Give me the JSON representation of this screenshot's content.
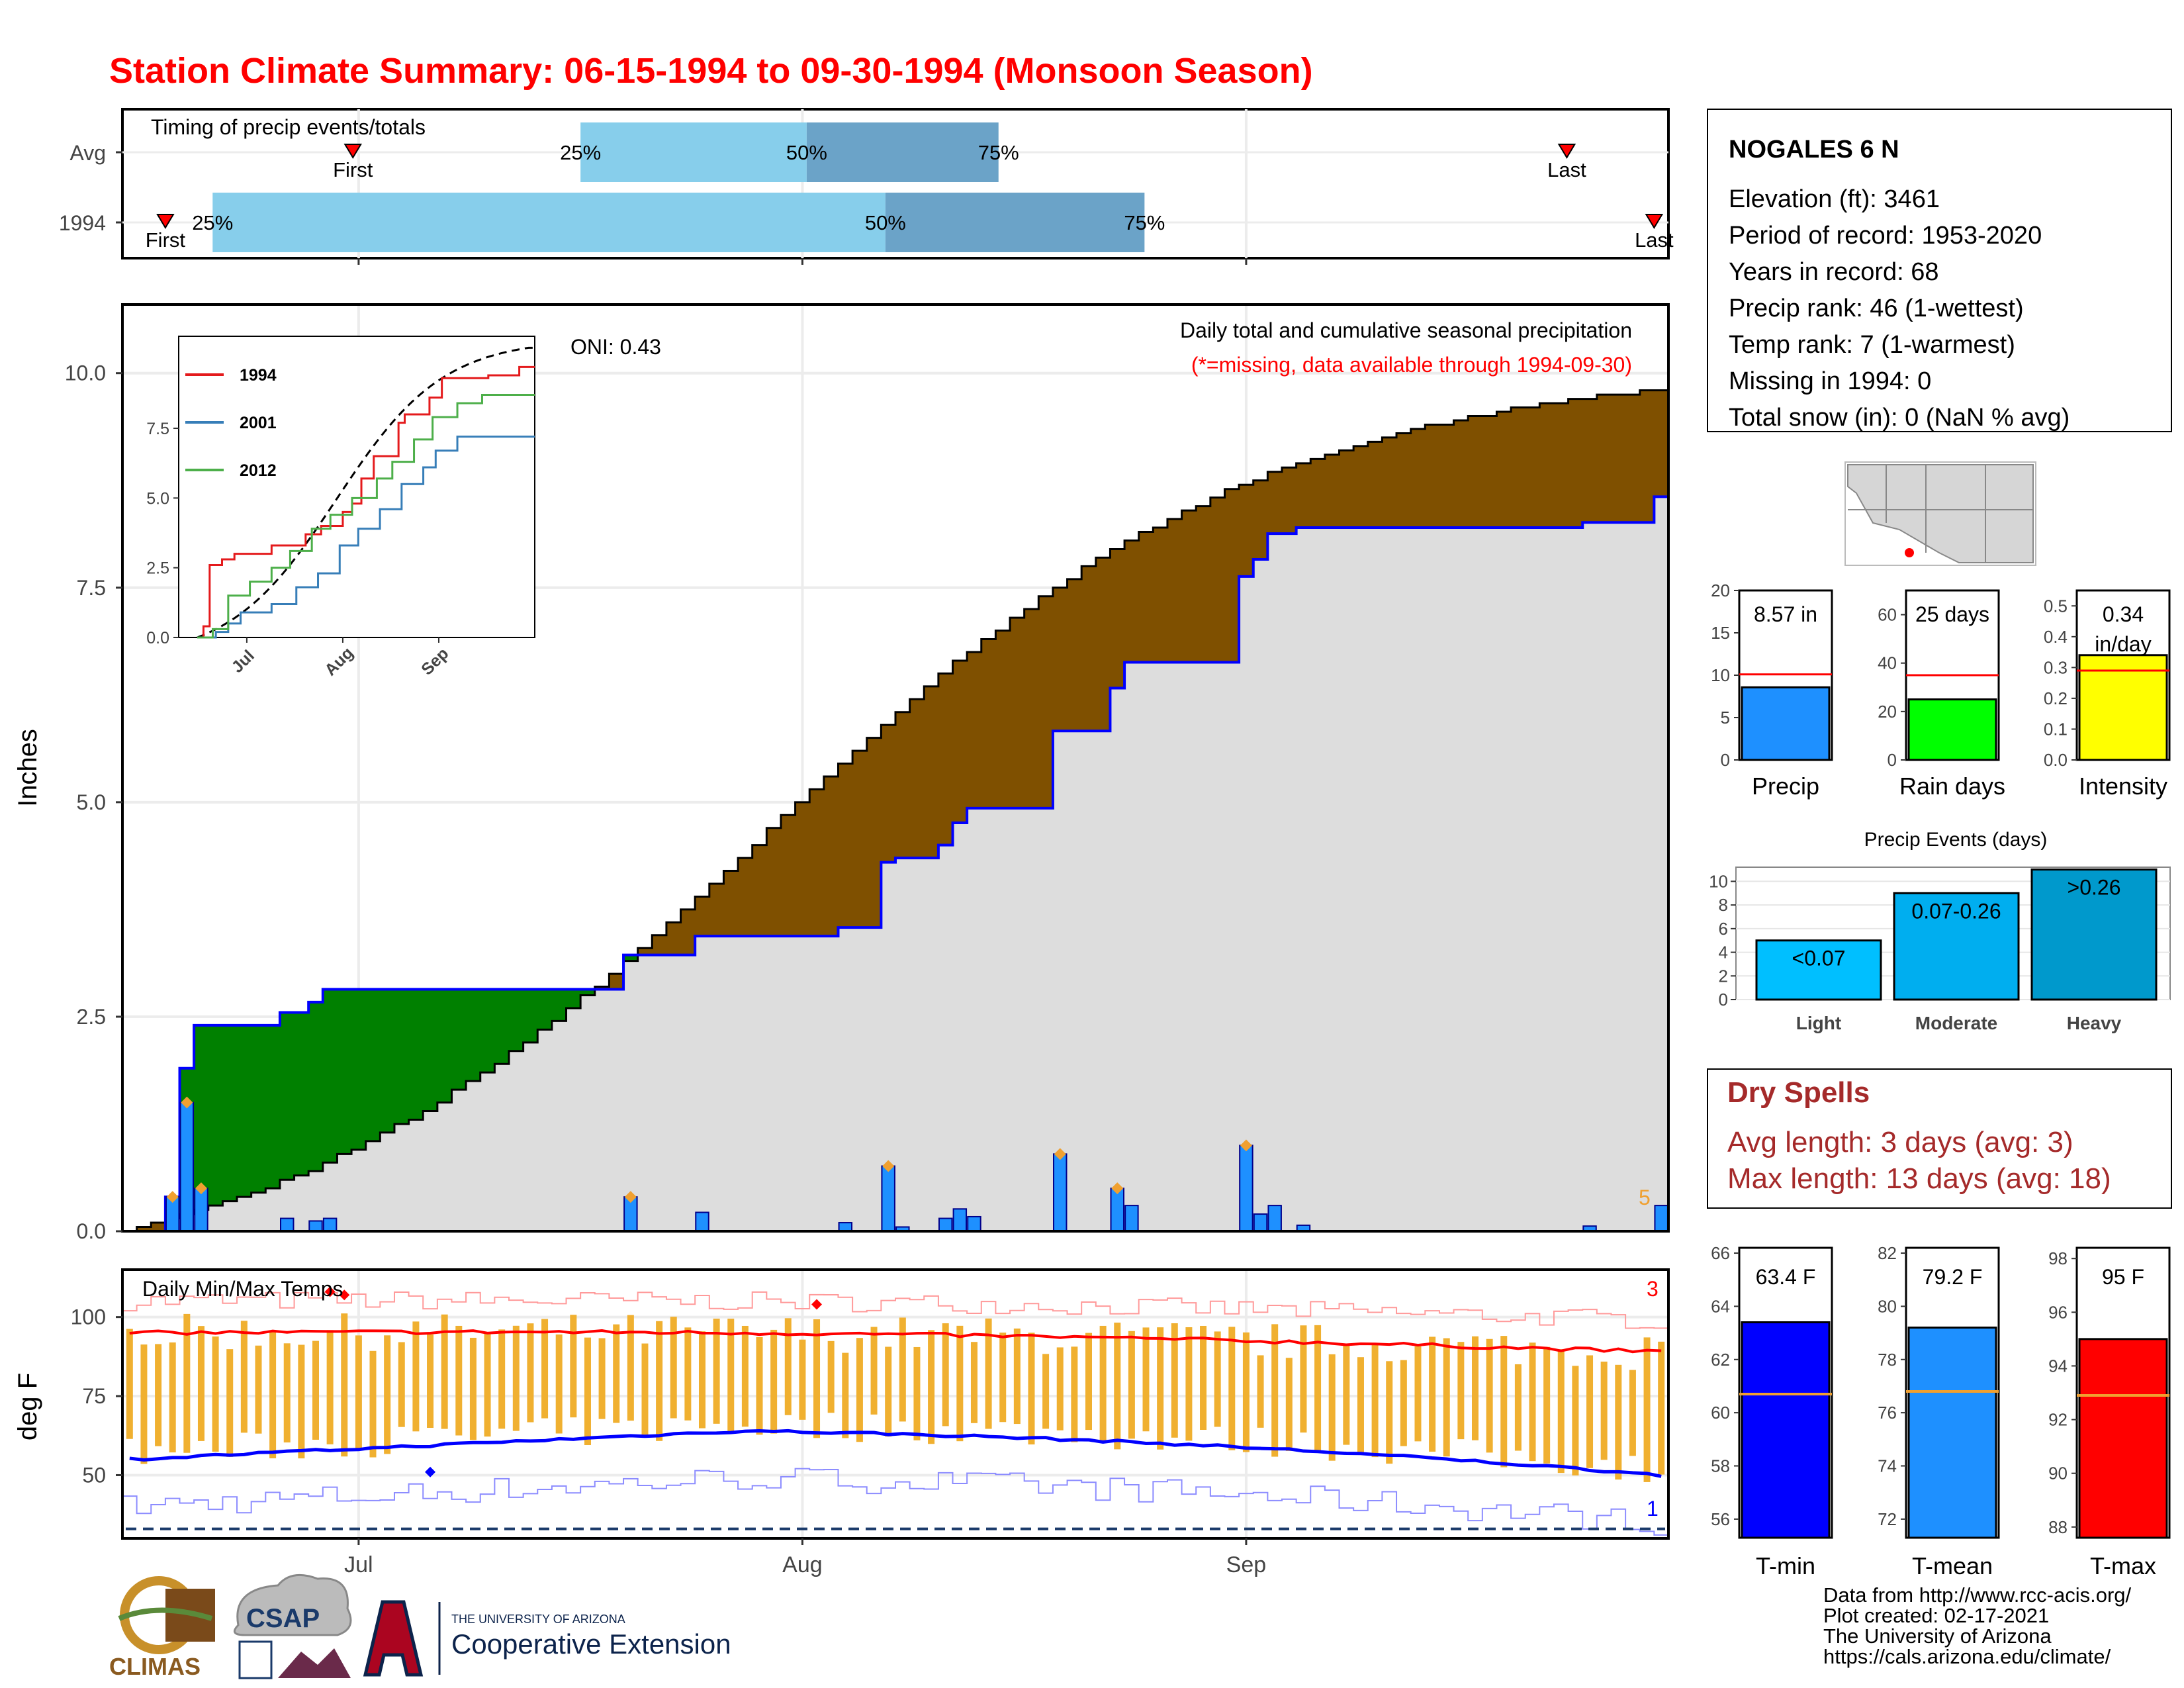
{
  "title": "Station Climate Summary: 06-15-1994 to 09-30-1994 (Monsoon Season)",
  "colors": {
    "title": "#ff0000",
    "dark_red": "#a52a2a",
    "green_fill": "#008000",
    "brown_fill": "#7f5000",
    "avg_fill": "#dddddd",
    "bar_blue": "#1e90ff",
    "blue_line": "#0000ff",
    "tmax_fill": "#ff0000",
    "tmin_fill": "#0000ff",
    "tmean_fill": "#1e90ff",
    "rain_fill": "#00ff00",
    "intensity_fill": "#ffff00",
    "range_bar": "#f0b030",
    "light_blue": "#87ceeb",
    "steel_blue": "#6ba3c8",
    "events_light": "#00bfff",
    "events_moderate": "#00aeef",
    "events_heavy": "#0099cc"
  },
  "timing_panel": {
    "title": "Timing of precip events/totals",
    "rows": [
      {
        "label": "Avg",
        "first_doy": 181.6,
        "q25": 197.5,
        "q50": 213.3,
        "q75": 226.7,
        "last_doy": 266.4,
        "q25_label": "25%",
        "q50_label": "50%",
        "q75_label": "75%",
        "first_label": "First",
        "last_label": "Last"
      },
      {
        "label": "1994",
        "first_doy": 168.5,
        "q25": 171.8,
        "q50": 218.8,
        "q75": 236.9,
        "last_doy": 272.5,
        "q25_label": "25%",
        "q50_label": "50%",
        "q75_label": "75%",
        "first_label": "First",
        "last_label": "Last"
      }
    ]
  },
  "main_panel": {
    "ylabel": "Inches",
    "title": "Daily total and cumulative seasonal precipitation",
    "subtitle": "(*=missing, data available through 1994-09-30)",
    "oni_label": "ONI: 0.43",
    "count_label": "5"
  },
  "temp_panel": {
    "title": "Daily Min/Max Temps",
    "ylabel": "deg F",
    "count_high": "3",
    "count_low": "1"
  },
  "month_labels": [
    "Jul",
    "Aug",
    "Sep"
  ],
  "station": {
    "name": "NOGALES 6 N",
    "lines": [
      "Elevation (ft): 3461",
      "Period of record: 1953-2020",
      "Years in record: 68",
      "Precip rank: 46 (1-wettest)",
      "Temp rank: 7 (1-warmest)",
      "Missing in 1994: 0",
      "Total snow (in): 0 (NaN % avg)"
    ]
  },
  "summary_bars": {
    "precip": {
      "label": "Precip",
      "value": 8.57,
      "value_label": "8.57 in",
      "avg": 10.1,
      "ymax": 20,
      "ticks": [
        "0",
        "5",
        "10",
        "15",
        "20"
      ]
    },
    "rain_days": {
      "label": "Rain days",
      "value": 25,
      "value_label": "25 days",
      "avg": 35,
      "ymax": 70,
      "ticks": [
        "0",
        "20",
        "40",
        "60"
      ]
    },
    "intensity": {
      "label": "Intensity",
      "value": 0.34,
      "value_label": "0.34",
      "value_label2": "in/day",
      "avg": 0.29,
      "ymax": 0.55,
      "ticks": [
        "0.0",
        "0.1",
        "0.2",
        "0.3",
        "0.4",
        "0.5"
      ]
    }
  },
  "precip_events": {
    "title": "Precip Events (days)",
    "categories": [
      "Light",
      "Moderate",
      "Heavy"
    ],
    "bar_labels": [
      "<0.07",
      "0.07-0.26",
      ">0.26"
    ],
    "values": [
      5,
      9,
      11
    ],
    "ticks": [
      "0",
      "2",
      "4",
      "6",
      "8",
      "10"
    ]
  },
  "dry_spells": {
    "title": "Dry Spells",
    "avg_line": "Avg length: 3 days (avg: 3)",
    "max_line": "Max length: 13 days (avg: 18)"
  },
  "temp_summary": {
    "tmin": {
      "label": "T-min",
      "value": 63.4,
      "value_label": "63.4 F",
      "avg": 60.7,
      "ymin": 55.3,
      "ymax": 66.2,
      "ticks": [
        "56",
        "58",
        "60",
        "62",
        "64",
        "66"
      ]
    },
    "tmean": {
      "label": "T-mean",
      "value": 79.2,
      "value_label": "79.2 F",
      "avg": 76.8,
      "ymin": 71.3,
      "ymax": 82.2,
      "ticks": [
        "72",
        "74",
        "76",
        "78",
        "80",
        "82"
      ]
    },
    "tmax": {
      "label": "T-max",
      "value": 95,
      "value_label": "95 F",
      "avg": 92.9,
      "ymin": 87.6,
      "ymax": 98.4,
      "ticks": [
        "88",
        "90",
        "92",
        "94",
        "96",
        "98"
      ]
    }
  },
  "inset": {
    "legend": [
      "1994",
      "2001",
      "2012"
    ],
    "series_colors": [
      "#e41a1c",
      "#377eb8",
      "#4daf4a"
    ]
  },
  "footer": {
    "lines": [
      "Data from http://www.rcc-acis.org/",
      "Plot created: 02-17-2021",
      "The University of Arizona",
      "https://cals.arizona.edu/climate/"
    ],
    "logo_climas": "CLIMAS",
    "logo_csap": "CSAP",
    "logo_ua_small": "THE UNIVERSITY OF ARIZONA",
    "logo_ua_big": "Cooperative Extension"
  },
  "chart_data": {
    "type": "area",
    "title": "Daily total and cumulative seasonal precipitation",
    "xlabel": "",
    "ylabel": "Inches",
    "x_range": [
      "1994-06-15",
      "1994-09-30"
    ],
    "ylim": [
      0,
      10.8
    ],
    "yticks": [
      "0.0",
      "2.5",
      "5.0",
      "7.5",
      "10.0"
    ],
    "daily_precip": [
      {
        "date": "1994-06-18",
        "value": 0.4
      },
      {
        "date": "1994-06-19",
        "value": 1.5
      },
      {
        "date": "1994-06-20",
        "value": 0.5
      },
      {
        "date": "1994-06-26",
        "value": 0.15
      },
      {
        "date": "1994-06-28",
        "value": 0.12
      },
      {
        "date": "1994-06-29",
        "value": 0.15
      },
      {
        "date": "1994-07-20",
        "value": 0.4
      },
      {
        "date": "1994-07-25",
        "value": 0.22
      },
      {
        "date": "1994-08-04",
        "value": 0.1
      },
      {
        "date": "1994-08-07",
        "value": 0.76
      },
      {
        "date": "1994-08-08",
        "value": 0.05
      },
      {
        "date": "1994-08-11",
        "value": 0.15
      },
      {
        "date": "1994-08-12",
        "value": 0.26
      },
      {
        "date": "1994-08-13",
        "value": 0.17
      },
      {
        "date": "1994-08-19",
        "value": 0.9
      },
      {
        "date": "1994-08-23",
        "value": 0.5
      },
      {
        "date": "1994-08-24",
        "value": 0.3
      },
      {
        "date": "1994-09-01",
        "value": 1.0
      },
      {
        "date": "1994-09-02",
        "value": 0.2
      },
      {
        "date": "1994-09-03",
        "value": 0.3
      },
      {
        "date": "1994-09-05",
        "value": 0.07
      },
      {
        "date": "1994-09-25",
        "value": 0.06
      },
      {
        "date": "1994-09-30",
        "value": 0.3
      }
    ],
    "cumulative_avg_endpoints": [
      {
        "date": "1994-06-15",
        "value": 0.0
      },
      {
        "date": "1994-07-31",
        "value": 3.35
      },
      {
        "date": "1994-09-30",
        "value": 9.8
      }
    ],
    "cumulative_1994_final": 8.57,
    "temperatures": {
      "ylim": [
        30,
        115
      ],
      "yticks": [
        "50",
        "75",
        "100"
      ],
      "tmax_start": 95,
      "tmax_end": 89,
      "tmin_start": 55,
      "tmin_peak": 64,
      "tmin_end": 50
    }
  }
}
